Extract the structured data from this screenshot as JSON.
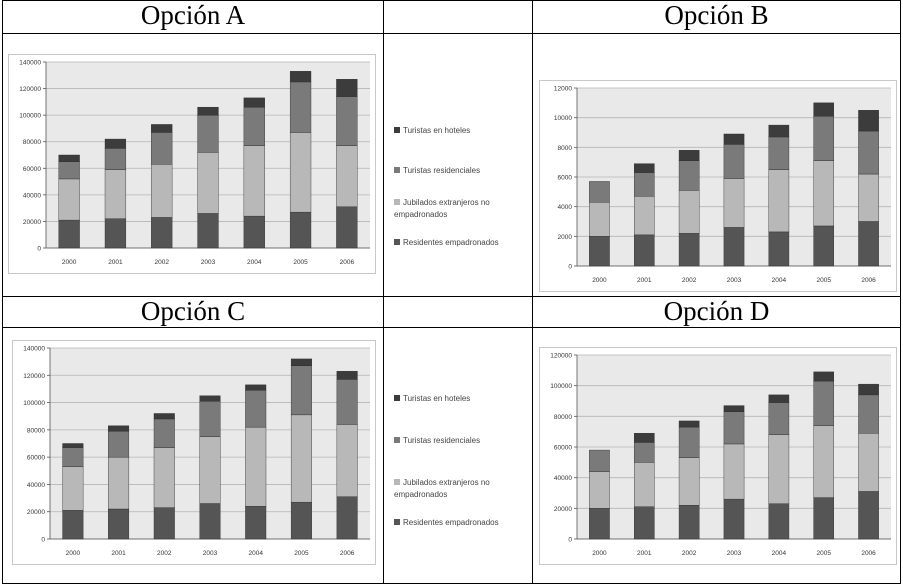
{
  "headers": [
    "Opción A",
    "Opción B",
    "Opción C",
    "Opción D"
  ],
  "legend": {
    "items": [
      {
        "label": "Turistas en hoteles",
        "color": "#3c3c3c"
      },
      {
        "label": "Turistas residenciales",
        "color": "#7a7a7a"
      },
      {
        "label": "Jubilados extranjeros no empadronados",
        "color": "#b8b8b8"
      },
      {
        "label": "Residentes empadronados",
        "color": "#555555"
      }
    ]
  },
  "chart_data": [
    {
      "type": "bar",
      "title": "",
      "stacked": true,
      "categories": [
        "2000",
        "2001",
        "2002",
        "2003",
        "2004",
        "2005",
        "2006"
      ],
      "ylim": [
        0,
        140000
      ],
      "yticks": [
        "0",
        "20000",
        "40000",
        "60000",
        "80000",
        "100000",
        "120000",
        "140000"
      ],
      "series": [
        {
          "name": "Residentes empadronados",
          "color": "#555555",
          "values": [
            21000,
            22000,
            23000,
            26000,
            24000,
            27000,
            31000
          ]
        },
        {
          "name": "Jubilados extranjeros no empadronados",
          "color": "#b8b8b8",
          "values": [
            31000,
            37000,
            40000,
            46000,
            53000,
            60000,
            46000
          ]
        },
        {
          "name": "Turistas residenciales",
          "color": "#7a7a7a",
          "values": [
            13000,
            16000,
            24000,
            28000,
            29000,
            38000,
            37000
          ]
        },
        {
          "name": "Turistas en hoteles",
          "color": "#3c3c3c",
          "values": [
            5000,
            7000,
            6000,
            6000,
            7000,
            8000,
            13000
          ]
        }
      ]
    },
    {
      "type": "bar",
      "title": "",
      "stacked": true,
      "categories": [
        "2000",
        "2001",
        "2002",
        "2003",
        "2004",
        "2005",
        "2006"
      ],
      "ylim": [
        0,
        12000
      ],
      "yticks": [
        "0",
        "2000",
        "4000",
        "6000",
        "8000",
        "10000",
        "12000"
      ],
      "series": [
        {
          "name": "Residentes empadronados",
          "color": "#555555",
          "values": [
            2000,
            2100,
            2200,
            2600,
            2300,
            2700,
            3000
          ]
        },
        {
          "name": "Jubilados extranjeros no empadronados",
          "color": "#b8b8b8",
          "values": [
            2300,
            2600,
            2900,
            3300,
            4200,
            4400,
            3200
          ]
        },
        {
          "name": "Turistas residenciales",
          "color": "#7a7a7a",
          "values": [
            1400,
            1600,
            2000,
            2300,
            2200,
            3000,
            2900
          ]
        },
        {
          "name": "Turistas en hoteles",
          "color": "#3c3c3c",
          "values": [
            0,
            600,
            700,
            700,
            800,
            900,
            1400
          ]
        }
      ]
    },
    {
      "type": "bar",
      "title": "",
      "stacked": true,
      "categories": [
        "2000",
        "2001",
        "2002",
        "2003",
        "2004",
        "2005",
        "2006"
      ],
      "ylim": [
        0,
        140000
      ],
      "yticks": [
        "0",
        "20000",
        "40000",
        "60000",
        "80000",
        "100000",
        "120000",
        "140000"
      ],
      "series": [
        {
          "name": "Residentes empadronados",
          "color": "#555555",
          "values": [
            21000,
            22000,
            23000,
            26000,
            24000,
            27000,
            31000
          ]
        },
        {
          "name": "Jubilados extranjeros no empadronados",
          "color": "#b8b8b8",
          "values": [
            32000,
            38000,
            44000,
            49000,
            58000,
            64000,
            53000
          ]
        },
        {
          "name": "Turistas residenciales",
          "color": "#7a7a7a",
          "values": [
            14000,
            19000,
            21000,
            26000,
            27000,
            36000,
            33000
          ]
        },
        {
          "name": "Turistas en hoteles",
          "color": "#3c3c3c",
          "values": [
            3000,
            4000,
            4000,
            4000,
            4000,
            5000,
            6000
          ]
        }
      ]
    },
    {
      "type": "bar",
      "title": "",
      "stacked": true,
      "categories": [
        "2000",
        "2001",
        "2002",
        "2003",
        "2004",
        "2005",
        "2006"
      ],
      "ylim": [
        0,
        120000
      ],
      "yticks": [
        "0",
        "20000",
        "40000",
        "60000",
        "80000",
        "100000",
        "120000"
      ],
      "series": [
        {
          "name": "Residentes empadronados",
          "color": "#555555",
          "values": [
            20000,
            21000,
            22000,
            26000,
            23000,
            27000,
            31000
          ]
        },
        {
          "name": "Jubilados extranjeros no empadronados",
          "color": "#b8b8b8",
          "values": [
            24000,
            29000,
            31000,
            36000,
            45000,
            47000,
            38000
          ]
        },
        {
          "name": "Turistas residenciales",
          "color": "#7a7a7a",
          "values": [
            14000,
            13000,
            20000,
            21000,
            21000,
            29000,
            25000
          ]
        },
        {
          "name": "Turistas en hoteles",
          "color": "#3c3c3c",
          "values": [
            0,
            6000,
            4000,
            4000,
            5000,
            6000,
            7000
          ]
        }
      ]
    }
  ]
}
